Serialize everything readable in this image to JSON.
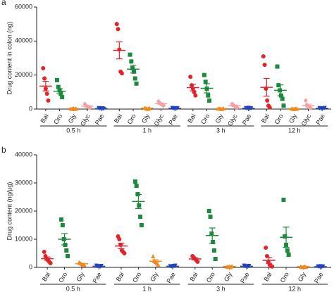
{
  "chart_data": [
    {
      "type": "dot",
      "panel_label": "a",
      "y_label": "Drug content  in colon (ng)",
      "ylim": [
        0,
        60000
      ],
      "yticks": [
        0,
        20000,
        40000,
        60000
      ],
      "groups": [
        "0.5 h",
        "1 h",
        "3 h",
        "12 h"
      ],
      "series": [
        {
          "name": "Bai",
          "color": "#e2232b",
          "marker": "circle",
          "points": [
            [
              24000,
              18000,
              12000,
              9000,
              5000
            ],
            [
              50000,
              47000,
              35000,
              22000,
              21000
            ],
            [
              19000,
              14000,
              12000,
              10000,
              8000
            ],
            [
              31000,
              26000,
              12000,
              5000,
              2000,
              1000
            ]
          ],
          "mean": [
            13500,
            34500,
            12600,
            12800
          ],
          "sem": [
            2800,
            5000,
            1900,
            5200
          ]
        },
        {
          "name": "Oro",
          "color": "#1b8a3c",
          "marker": "square",
          "points": [
            [
              17000,
              13000,
              11000,
              9000,
              7000
            ],
            [
              32000,
              28000,
              24000,
              22000,
              18000,
              15000
            ],
            [
              20000,
              16000,
              12000,
              8000,
              5000
            ],
            [
              25000,
              14000,
              11000,
              8000,
              6000,
              2000
            ]
          ],
          "mean": [
            10500,
            23500,
            12200,
            11000
          ],
          "sem": [
            1500,
            2300,
            2700,
            3200
          ]
        },
        {
          "name": "Gly",
          "color": "#f08a1e",
          "marker": "triangle",
          "points": [
            [
              300,
              200,
              500,
              100,
              400
            ],
            [
              800,
              500,
              300,
              200,
              600
            ],
            [
              400,
              200,
              300,
              100,
              500
            ],
            [
              300,
              200,
              100,
              400,
              200
            ]
          ],
          "mean": [
            300,
            480,
            300,
            240
          ],
          "sem": [
            80,
            110,
            70,
            50
          ]
        },
        {
          "name": "Glyc",
          "color": "#f2a2a6",
          "marker": "diamond",
          "points": [
            [
              3000,
              2000,
              1500,
              1000,
              800
            ],
            [
              4500,
              3500,
              3000,
              2500,
              2000
            ],
            [
              3000,
              2500,
              1800,
              1200,
              900
            ],
            [
              5000,
              2500,
              1500,
              800,
              500
            ]
          ],
          "mean": [
            1700,
            3100,
            1900,
            2060
          ],
          "sem": [
            400,
            430,
            390,
            810
          ]
        },
        {
          "name": "Pae",
          "color": "#2142c0",
          "marker": "triangle-down",
          "points": [
            [
              500,
              300,
              200,
              400,
              100
            ],
            [
              600,
              400,
              200,
              300,
              500
            ],
            [
              500,
              300,
              700,
              200,
              400
            ],
            [
              500,
              300,
              200,
              400,
              600
            ]
          ],
          "mean": [
            300,
            400,
            420,
            400
          ],
          "sem": [
            70,
            70,
            86,
            70
          ]
        }
      ]
    },
    {
      "type": "dot",
      "panel_label": "b",
      "y_label": "Drug content (ng/μg)",
      "ylim": [
        0,
        40000
      ],
      "yticks": [
        0,
        10000,
        20000,
        30000,
        40000
      ],
      "groups": [
        "0.5 h",
        "1 h",
        "3 h",
        "12 h"
      ],
      "series": [
        {
          "name": "Bai",
          "color": "#e2232b",
          "marker": "circle",
          "points": [
            [
              5500,
              4000,
              3000,
              2500,
              2000,
              1500
            ],
            [
              11000,
              10000,
              8000,
              6000,
              5500,
              5000
            ],
            [
              4000,
              3500,
              3000,
              2500,
              2000
            ],
            [
              7000,
              4000,
              2000,
              1000,
              500,
              300
            ]
          ],
          "mean": [
            3100,
            7600,
            3000,
            2500
          ],
          "sem": [
            600,
            1000,
            350,
            1050
          ]
        },
        {
          "name": "Oro",
          "color": "#1b8a3c",
          "marker": "square",
          "points": [
            [
              17000,
              15000,
              10000,
              8000,
              6000,
              4000
            ],
            [
              30500,
              29000,
              26000,
              22000,
              18000,
              15000
            ],
            [
              20000,
              18000,
              12000,
              9000,
              6000,
              3000
            ],
            [
              24000,
              11000,
              8000,
              6000,
              4500
            ]
          ],
          "mean": [
            10000,
            23400,
            11300,
            10700
          ],
          "sem": [
            2000,
            2500,
            2700,
            3600
          ]
        },
        {
          "name": "Gly",
          "color": "#f08a1e",
          "marker": "triangle",
          "points": [
            [
              1800,
              1500,
              1200,
              1000,
              900
            ],
            [
              4000,
              2500,
              2000,
              1500,
              1000
            ],
            [
              300,
              200,
              400,
              100,
              500
            ],
            [
              300,
              200,
              100,
              400,
              200
            ]
          ],
          "mean": [
            1280,
            2200,
            300,
            240
          ],
          "sem": [
            170,
            520,
            70,
            50
          ]
        },
        {
          "name": "Pae",
          "color": "#2142c0",
          "marker": "triangle-down",
          "points": [
            [
              600,
              400,
              300,
              200,
              500
            ],
            [
              400,
              300,
              200,
              500,
              600
            ],
            [
              600,
              400,
              300,
              200,
              500
            ],
            [
              300,
              200,
              400,
              100,
              300
            ]
          ],
          "mean": [
            400,
            400,
            400,
            260
          ],
          "sem": [
            70,
            70,
            70,
            50
          ]
        }
      ]
    }
  ]
}
